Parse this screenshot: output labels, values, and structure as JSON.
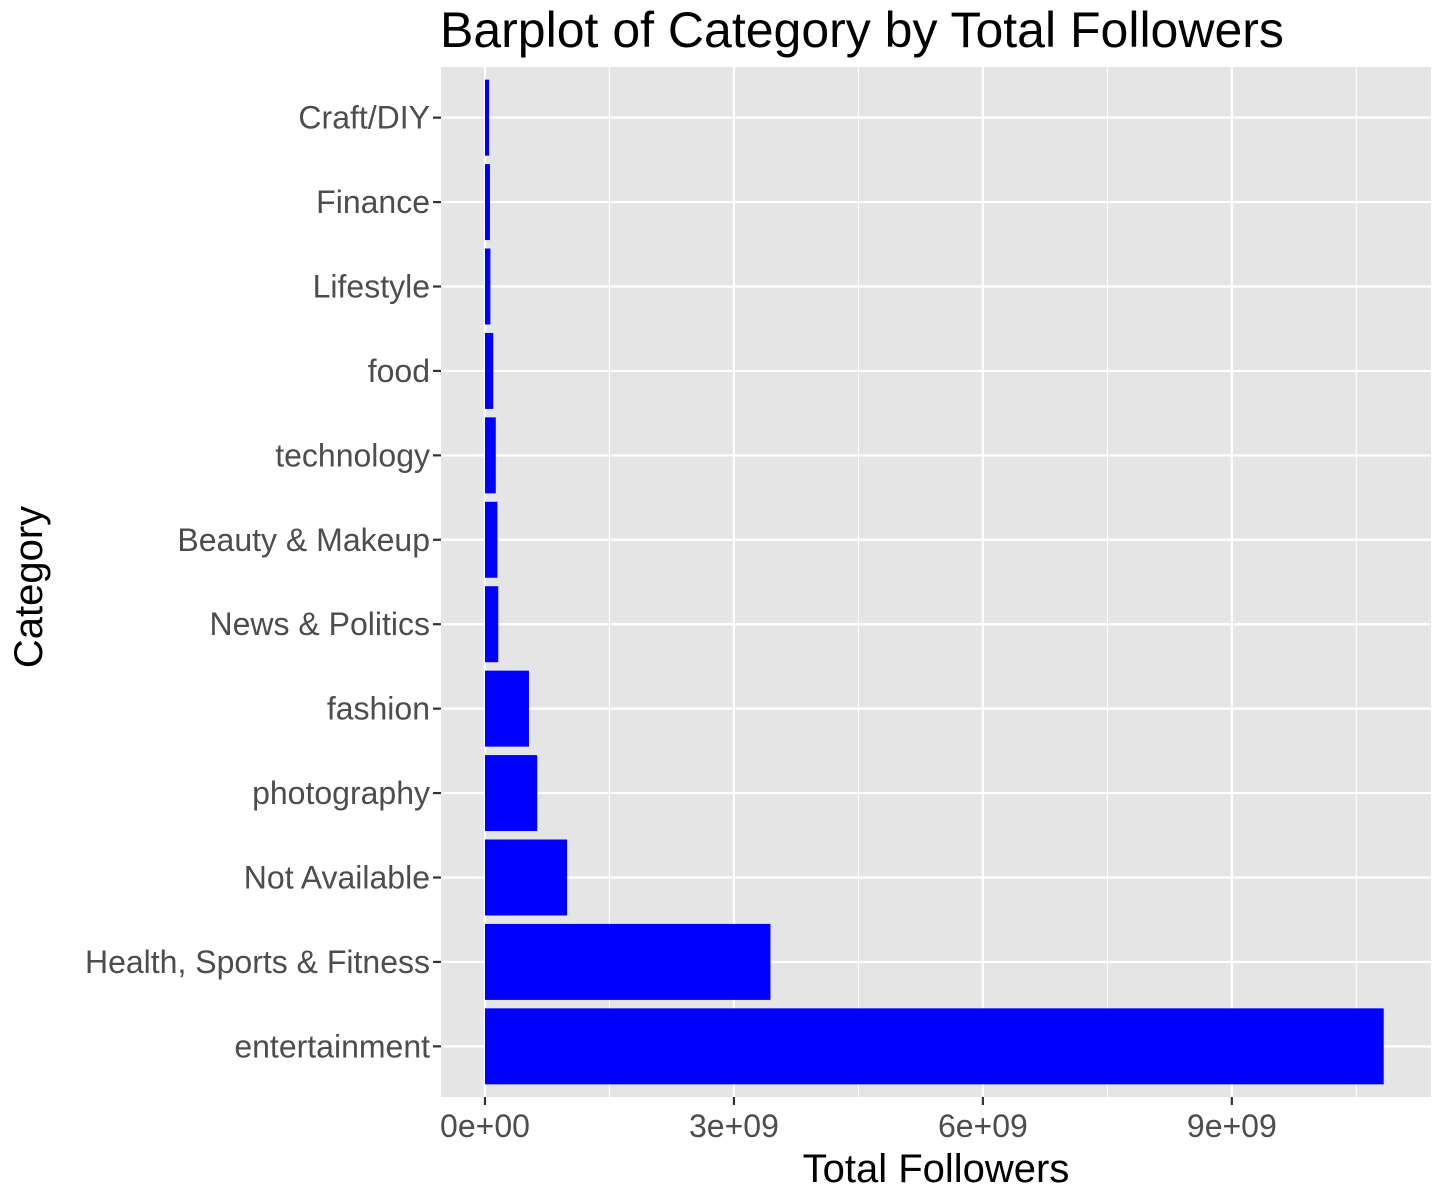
{
  "chart_data": {
    "type": "bar",
    "orientation": "horizontal",
    "title": "Barplot of Category by Total Followers",
    "xlabel": "Total Followers",
    "ylabel": "Category",
    "categories": [
      "entertainment",
      "Health, Sports & Fitness",
      "Not Available",
      "photography",
      "fashion",
      "News & Politics",
      "Beauty & Makeup",
      "technology",
      "food",
      "Lifestyle",
      "Finance",
      "Craft/DIY"
    ],
    "values": [
      10830000000,
      3440000000,
      990000000,
      630000000,
      530000000,
      160000000,
      150000000,
      130000000,
      100000000,
      65000000,
      60000000,
      50000000
    ],
    "xticks": [
      0,
      3000000000,
      6000000000,
      9000000000
    ],
    "xtick_labels": [
      "0e+00",
      "3e+09",
      "6e+09",
      "9e+09"
    ],
    "xlim": [
      -530000000,
      11400000000
    ],
    "grid": true,
    "legend": "none",
    "colors": {
      "bar": "#0000ff",
      "panel_background": "#e5e5e5",
      "grid_line": "#ffffff",
      "tick_text": "#4d4d4d",
      "tick_mark": "#333333"
    }
  }
}
